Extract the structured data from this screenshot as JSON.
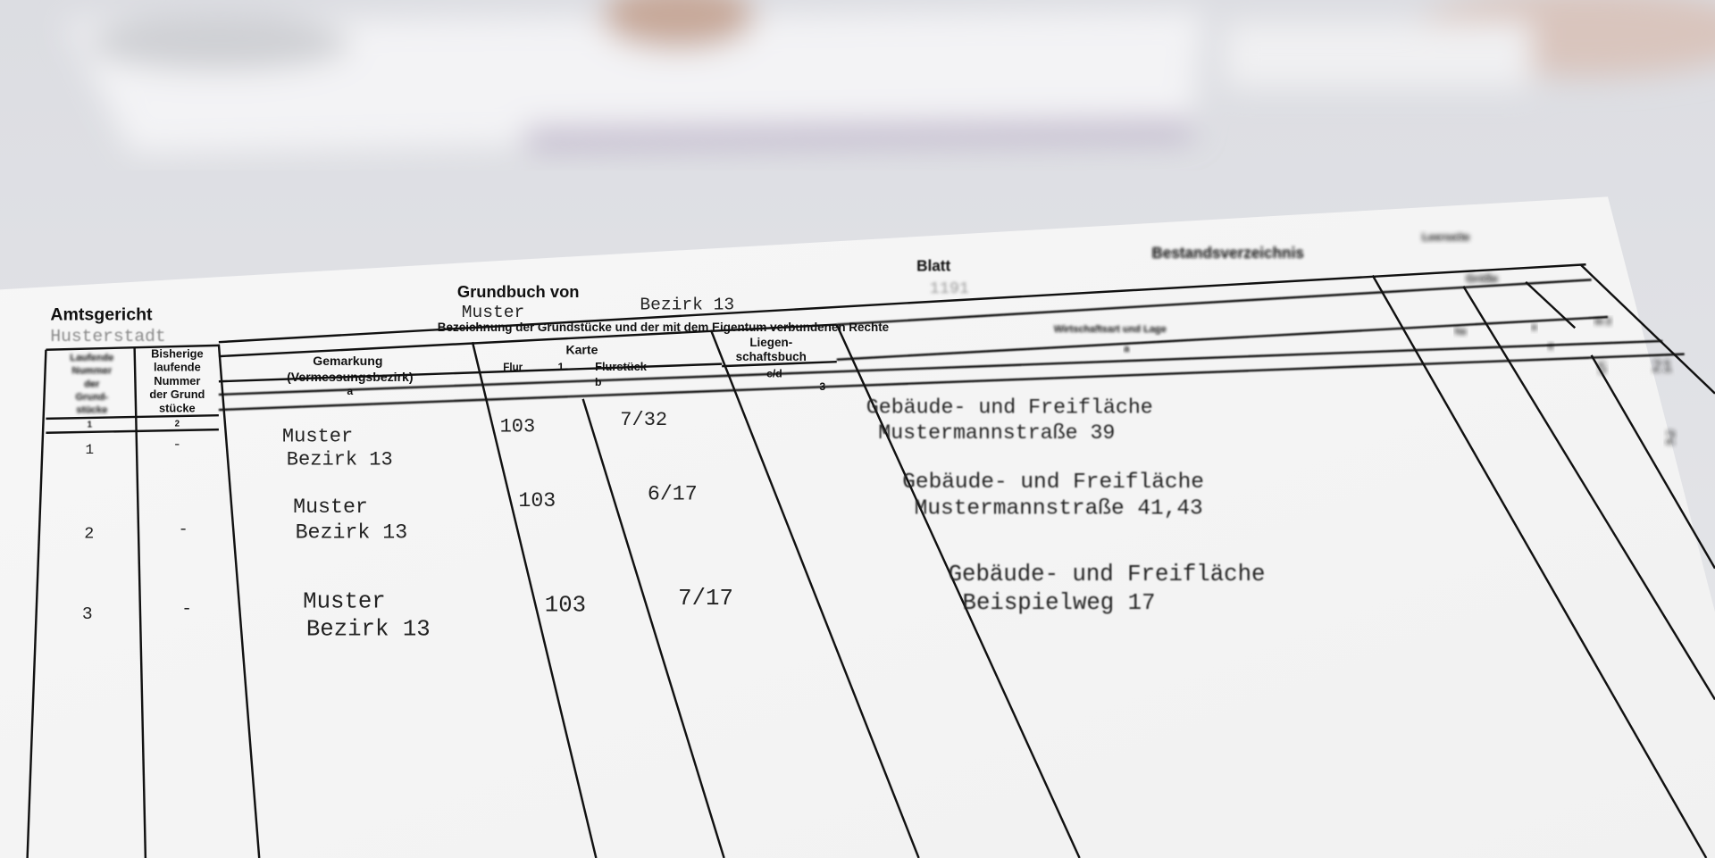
{
  "header": {
    "court_label": "Amtsgericht",
    "court_value": "Husterstadt",
    "book_label": "Grundbuch von",
    "book_value_1": "Muster",
    "book_value_2": "Bezirk 13",
    "sheet_label": "Blatt",
    "sheet_value": "1191",
    "section_title": "Bestandsverzeichnis",
    "section_note": "Leerseite"
  },
  "table_header": {
    "group_title": "Bezeichnung der Grundstücke und der mit dem Eigentum verbundenen Rechte",
    "col1": [
      "Laufende",
      "Nummer",
      "der",
      "Grund-",
      "stücke"
    ],
    "col2": [
      "Bisherige",
      "laufende",
      "Nummer",
      "der Grund",
      "stücke"
    ],
    "gemarkung": "Gemarkung",
    "gemarkung_sub": "(Vermessungsbezirk)",
    "karte": "Karte",
    "flur": "Flur",
    "flur_num": "1",
    "flurstueck": "Flurstück",
    "liegenschaft_1": "Liegen-",
    "liegenschaft_2": "schaftsbuch",
    "cd": "c/d",
    "a": "a",
    "b": "b",
    "three": "3",
    "wirtschaftsart": "Wirtschaftsart und Lage",
    "wa_letter": "a",
    "groesse": "Größe",
    "ha": "ha",
    "ar": "a",
    "m2": "m 2",
    "four": "4",
    "num1": "1",
    "num2": "2",
    "size_vals": [
      "5",
      "21",
      "2"
    ]
  },
  "rows": [
    {
      "nr": "1",
      "prev": "-",
      "gem1": "Muster",
      "gem2": "Bezirk 13",
      "flur": "103",
      "flurstueck": "7/32",
      "use": "Gebäude- und Freifläche",
      "loc": "Mustermannstraße 39"
    },
    {
      "nr": "2",
      "prev": "-",
      "gem1": "Muster",
      "gem2": "Bezirk 13",
      "flur": "103",
      "flurstueck": "6/17",
      "use": "Gebäude- und Freifläche",
      "loc": "Mustermannstraße 41,43"
    },
    {
      "nr": "3",
      "prev": "-",
      "gem1": "Muster",
      "gem2": "Bezirk 13",
      "flur": "103",
      "flurstueck": "7/17",
      "use": "Gebäude- und Freifläche",
      "loc": "Beispielweg 17"
    }
  ]
}
